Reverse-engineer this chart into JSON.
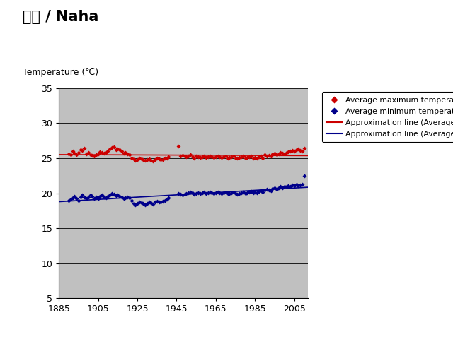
{
  "title": "那覇 / Naha",
  "ylabel": "Temperature (℃)",
  "xlim": [
    1885,
    2012
  ],
  "ylim": [
    5,
    35
  ],
  "yticks": [
    5,
    10,
    15,
    20,
    25,
    30,
    35
  ],
  "xticks": [
    1885,
    1905,
    1925,
    1945,
    1965,
    1985,
    2005
  ],
  "bg_color": "#c0c0c0",
  "fig_bg": "#ffffff",
  "max_temp_color": "#cc0000",
  "min_temp_color": "#00008b",
  "max_line_color": "#cc0000",
  "min_line_color": "#00008b",
  "legend_labels": [
    "Average maximum temperature (℃)",
    "Average minimum temperature (℃)",
    "Approximation line (Average Max Temp)",
    "Approximation line (Average Min Temp)"
  ],
  "max_temp_data": [
    [
      1890,
      25.6
    ],
    [
      1891,
      25.5
    ],
    [
      1892,
      26.0
    ],
    [
      1893,
      25.7
    ],
    [
      1894,
      25.5
    ],
    [
      1895,
      25.8
    ],
    [
      1896,
      26.2
    ],
    [
      1897,
      26.1
    ],
    [
      1898,
      26.4
    ],
    [
      1899,
      25.6
    ],
    [
      1900,
      25.8
    ],
    [
      1901,
      25.5
    ],
    [
      1902,
      25.4
    ],
    [
      1903,
      25.3
    ],
    [
      1904,
      25.5
    ],
    [
      1905,
      25.6
    ],
    [
      1906,
      25.9
    ],
    [
      1907,
      25.8
    ],
    [
      1908,
      25.7
    ],
    [
      1909,
      25.8
    ],
    [
      1910,
      26.0
    ],
    [
      1911,
      26.3
    ],
    [
      1912,
      26.5
    ],
    [
      1913,
      26.6
    ],
    [
      1914,
      26.2
    ],
    [
      1915,
      26.3
    ],
    [
      1916,
      26.2
    ],
    [
      1917,
      26.0
    ],
    [
      1918,
      25.7
    ],
    [
      1919,
      25.8
    ],
    [
      1920,
      25.6
    ],
    [
      1921,
      25.5
    ],
    [
      1922,
      25.0
    ],
    [
      1923,
      24.9
    ],
    [
      1924,
      24.7
    ],
    [
      1925,
      24.8
    ],
    [
      1926,
      25.0
    ],
    [
      1927,
      24.9
    ],
    [
      1928,
      24.8
    ],
    [
      1929,
      24.7
    ],
    [
      1930,
      24.8
    ],
    [
      1931,
      24.9
    ],
    [
      1932,
      24.7
    ],
    [
      1933,
      24.6
    ],
    [
      1934,
      24.8
    ],
    [
      1935,
      25.0
    ],
    [
      1936,
      24.9
    ],
    [
      1937,
      24.8
    ],
    [
      1938,
      24.8
    ],
    [
      1939,
      25.0
    ],
    [
      1940,
      25.0
    ],
    [
      1941,
      25.2
    ],
    [
      1946,
      26.7
    ],
    [
      1947,
      25.3
    ],
    [
      1948,
      25.4
    ],
    [
      1949,
      25.3
    ],
    [
      1950,
      25.2
    ],
    [
      1951,
      25.3
    ],
    [
      1952,
      25.5
    ],
    [
      1953,
      25.2
    ],
    [
      1954,
      25.0
    ],
    [
      1955,
      25.3
    ],
    [
      1956,
      25.2
    ],
    [
      1957,
      25.1
    ],
    [
      1958,
      25.2
    ],
    [
      1959,
      25.3
    ],
    [
      1960,
      25.1
    ],
    [
      1961,
      25.2
    ],
    [
      1962,
      25.3
    ],
    [
      1963,
      25.2
    ],
    [
      1964,
      25.1
    ],
    [
      1965,
      25.2
    ],
    [
      1966,
      25.3
    ],
    [
      1967,
      25.2
    ],
    [
      1968,
      25.1
    ],
    [
      1969,
      25.2
    ],
    [
      1970,
      25.3
    ],
    [
      1971,
      25.0
    ],
    [
      1972,
      25.1
    ],
    [
      1973,
      25.2
    ],
    [
      1974,
      25.3
    ],
    [
      1975,
      25.0
    ],
    [
      1976,
      25.0
    ],
    [
      1977,
      25.1
    ],
    [
      1978,
      25.2
    ],
    [
      1979,
      25.3
    ],
    [
      1980,
      25.0
    ],
    [
      1981,
      25.1
    ],
    [
      1982,
      25.2
    ],
    [
      1983,
      25.3
    ],
    [
      1984,
      25.0
    ],
    [
      1985,
      25.1
    ],
    [
      1986,
      25.0
    ],
    [
      1987,
      25.2
    ],
    [
      1988,
      25.3
    ],
    [
      1989,
      25.0
    ],
    [
      1990,
      25.5
    ],
    [
      1991,
      25.3
    ],
    [
      1992,
      25.4
    ],
    [
      1993,
      25.3
    ],
    [
      1994,
      25.6
    ],
    [
      1995,
      25.7
    ],
    [
      1996,
      25.5
    ],
    [
      1997,
      25.6
    ],
    [
      1998,
      25.8
    ],
    [
      1999,
      25.7
    ],
    [
      2000,
      25.6
    ],
    [
      2001,
      25.8
    ],
    [
      2002,
      25.9
    ],
    [
      2003,
      26.0
    ],
    [
      2004,
      26.1
    ],
    [
      2005,
      26.0
    ],
    [
      2006,
      26.2
    ],
    [
      2007,
      26.3
    ],
    [
      2008,
      26.1
    ],
    [
      2009,
      26.0
    ],
    [
      2010,
      26.4
    ]
  ],
  "min_temp_data": [
    [
      1890,
      19.0
    ],
    [
      1891,
      19.2
    ],
    [
      1892,
      19.4
    ],
    [
      1893,
      19.6
    ],
    [
      1894,
      19.3
    ],
    [
      1895,
      19.0
    ],
    [
      1896,
      19.5
    ],
    [
      1897,
      19.8
    ],
    [
      1898,
      19.5
    ],
    [
      1899,
      19.3
    ],
    [
      1900,
      19.5
    ],
    [
      1901,
      19.8
    ],
    [
      1902,
      19.6
    ],
    [
      1903,
      19.3
    ],
    [
      1904,
      19.5
    ],
    [
      1905,
      19.3
    ],
    [
      1906,
      19.6
    ],
    [
      1907,
      19.8
    ],
    [
      1908,
      19.5
    ],
    [
      1909,
      19.4
    ],
    [
      1910,
      19.6
    ],
    [
      1911,
      19.8
    ],
    [
      1912,
      20.0
    ],
    [
      1913,
      19.9
    ],
    [
      1914,
      19.7
    ],
    [
      1915,
      19.8
    ],
    [
      1916,
      19.6
    ],
    [
      1917,
      19.5
    ],
    [
      1918,
      19.3
    ],
    [
      1919,
      19.4
    ],
    [
      1920,
      19.5
    ],
    [
      1921,
      19.4
    ],
    [
      1922,
      19.0
    ],
    [
      1923,
      18.5
    ],
    [
      1924,
      18.3
    ],
    [
      1925,
      18.5
    ],
    [
      1926,
      18.8
    ],
    [
      1927,
      18.6
    ],
    [
      1928,
      18.5
    ],
    [
      1929,
      18.3
    ],
    [
      1930,
      18.5
    ],
    [
      1931,
      18.8
    ],
    [
      1932,
      18.6
    ],
    [
      1933,
      18.4
    ],
    [
      1934,
      18.7
    ],
    [
      1935,
      18.9
    ],
    [
      1936,
      18.7
    ],
    [
      1937,
      18.8
    ],
    [
      1938,
      18.9
    ],
    [
      1939,
      19.0
    ],
    [
      1940,
      19.2
    ],
    [
      1941,
      19.4
    ],
    [
      1946,
      20.0
    ],
    [
      1947,
      19.9
    ],
    [
      1948,
      19.8
    ],
    [
      1949,
      19.9
    ],
    [
      1950,
      20.0
    ],
    [
      1951,
      20.1
    ],
    [
      1952,
      20.2
    ],
    [
      1953,
      20.1
    ],
    [
      1954,
      19.9
    ],
    [
      1955,
      20.0
    ],
    [
      1956,
      20.1
    ],
    [
      1957,
      20.0
    ],
    [
      1958,
      20.1
    ],
    [
      1959,
      20.2
    ],
    [
      1960,
      20.0
    ],
    [
      1961,
      20.1
    ],
    [
      1962,
      20.2
    ],
    [
      1963,
      20.1
    ],
    [
      1964,
      20.0
    ],
    [
      1965,
      20.1
    ],
    [
      1966,
      20.2
    ],
    [
      1967,
      20.1
    ],
    [
      1968,
      20.0
    ],
    [
      1969,
      20.1
    ],
    [
      1970,
      20.2
    ],
    [
      1971,
      20.0
    ],
    [
      1972,
      20.0
    ],
    [
      1973,
      20.1
    ],
    [
      1974,
      20.2
    ],
    [
      1975,
      20.0
    ],
    [
      1976,
      19.9
    ],
    [
      1977,
      20.0
    ],
    [
      1978,
      20.1
    ],
    [
      1979,
      20.2
    ],
    [
      1980,
      20.0
    ],
    [
      1981,
      20.1
    ],
    [
      1982,
      20.2
    ],
    [
      1983,
      20.3
    ],
    [
      1984,
      20.1
    ],
    [
      1985,
      20.2
    ],
    [
      1986,
      20.1
    ],
    [
      1987,
      20.3
    ],
    [
      1988,
      20.4
    ],
    [
      1989,
      20.2
    ],
    [
      1990,
      20.5
    ],
    [
      1991,
      20.6
    ],
    [
      1992,
      20.5
    ],
    [
      1993,
      20.4
    ],
    [
      1994,
      20.7
    ],
    [
      1995,
      20.8
    ],
    [
      1996,
      20.6
    ],
    [
      1997,
      20.8
    ],
    [
      1998,
      21.0
    ],
    [
      1999,
      20.8
    ],
    [
      2000,
      21.0
    ],
    [
      2001,
      21.0
    ],
    [
      2002,
      21.1
    ],
    [
      2003,
      21.0
    ],
    [
      2004,
      21.2
    ],
    [
      2005,
      21.1
    ],
    [
      2006,
      21.3
    ],
    [
      2007,
      21.1
    ],
    [
      2008,
      21.2
    ],
    [
      2009,
      21.3
    ],
    [
      2010,
      22.5
    ]
  ]
}
